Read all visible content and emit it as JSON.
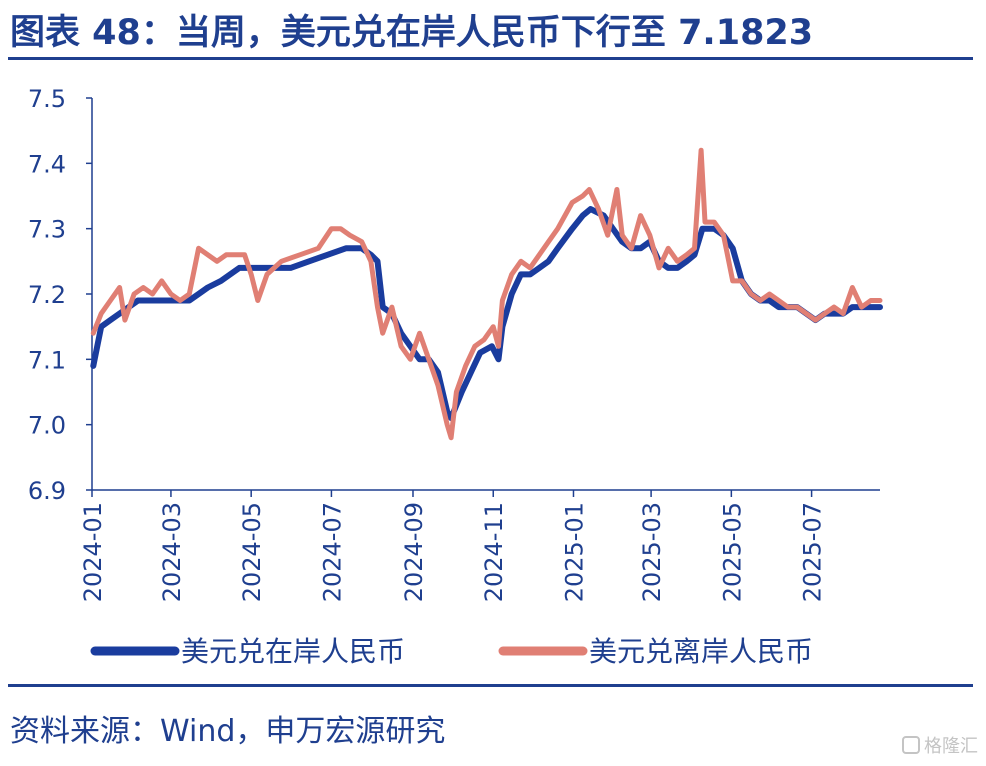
{
  "header": {
    "title": "图表 48：当周，美元兑在岸人民币下行至 7.1823"
  },
  "footer": {
    "source": "资料来源：Wind，申万宏源研究"
  },
  "watermark": {
    "text": "格隆汇"
  },
  "colors": {
    "accent": "#1f3f8f",
    "onshore": "#1a3c9e",
    "offshore": "#e07f74"
  },
  "chart_data": {
    "type": "line",
    "title": "",
    "xlabel": "",
    "ylabel": "",
    "ylim": [
      6.9,
      7.5
    ],
    "yticks": [
      "6.9",
      "7.0",
      "7.1",
      "7.2",
      "7.3",
      "7.4",
      "7.5"
    ],
    "xticks": [
      "2024-01",
      "2024-03",
      "2024-05",
      "2024-07",
      "2024-09",
      "2024-11",
      "2025-01",
      "2025-03",
      "2025-05",
      "2025-07"
    ],
    "xrange": [
      "2024-01-01",
      "2025-08-22"
    ],
    "grid": false,
    "legend": "bottom",
    "series": [
      {
        "name": "美元兑在岸人民币",
        "color": "#1a3c9e",
        "points": [
          [
            "2024-01-02",
            7.09
          ],
          [
            "2024-01-08",
            7.15
          ],
          [
            "2024-01-15",
            7.16
          ],
          [
            "2024-01-22",
            7.17
          ],
          [
            "2024-01-29",
            7.18
          ],
          [
            "2024-02-05",
            7.19
          ],
          [
            "2024-02-19",
            7.19
          ],
          [
            "2024-03-01",
            7.19
          ],
          [
            "2024-03-15",
            7.19
          ],
          [
            "2024-03-22",
            7.2
          ],
          [
            "2024-03-29",
            7.21
          ],
          [
            "2024-04-08",
            7.22
          ],
          [
            "2024-04-15",
            7.23
          ],
          [
            "2024-04-22",
            7.24
          ],
          [
            "2024-05-01",
            7.24
          ],
          [
            "2024-05-15",
            7.24
          ],
          [
            "2024-05-31",
            7.24
          ],
          [
            "2024-06-14",
            7.25
          ],
          [
            "2024-06-28",
            7.26
          ],
          [
            "2024-07-12",
            7.27
          ],
          [
            "2024-07-24",
            7.27
          ],
          [
            "2024-07-31",
            7.26
          ],
          [
            "2024-08-05",
            7.25
          ],
          [
            "2024-08-09",
            7.18
          ],
          [
            "2024-08-16",
            7.17
          ],
          [
            "2024-08-23",
            7.14
          ],
          [
            "2024-08-30",
            7.12
          ],
          [
            "2024-09-06",
            7.1
          ],
          [
            "2024-09-13",
            7.1
          ],
          [
            "2024-09-20",
            7.08
          ],
          [
            "2024-09-27",
            7.02
          ],
          [
            "2024-09-30",
            7.01
          ],
          [
            "2024-10-08",
            7.05
          ],
          [
            "2024-10-15",
            7.08
          ],
          [
            "2024-10-22",
            7.11
          ],
          [
            "2024-10-31",
            7.12
          ],
          [
            "2024-11-05",
            7.1
          ],
          [
            "2024-11-08",
            7.15
          ],
          [
            "2024-11-15",
            7.2
          ],
          [
            "2024-11-22",
            7.23
          ],
          [
            "2024-11-29",
            7.23
          ],
          [
            "2024-12-06",
            7.24
          ],
          [
            "2024-12-13",
            7.25
          ],
          [
            "2024-12-20",
            7.27
          ],
          [
            "2024-12-31",
            7.3
          ],
          [
            "2025-01-08",
            7.32
          ],
          [
            "2025-01-14",
            7.33
          ],
          [
            "2025-01-24",
            7.32
          ],
          [
            "2025-01-31",
            7.3
          ],
          [
            "2025-02-07",
            7.28
          ],
          [
            "2025-02-14",
            7.27
          ],
          [
            "2025-02-21",
            7.27
          ],
          [
            "2025-02-28",
            7.28
          ],
          [
            "2025-03-07",
            7.25
          ],
          [
            "2025-03-14",
            7.24
          ],
          [
            "2025-03-21",
            7.24
          ],
          [
            "2025-03-28",
            7.25
          ],
          [
            "2025-04-03",
            7.26
          ],
          [
            "2025-04-09",
            7.3
          ],
          [
            "2025-04-11",
            7.3
          ],
          [
            "2025-04-18",
            7.3
          ],
          [
            "2025-04-25",
            7.29
          ],
          [
            "2025-05-02",
            7.27
          ],
          [
            "2025-05-09",
            7.22
          ],
          [
            "2025-05-16",
            7.2
          ],
          [
            "2025-05-23",
            7.19
          ],
          [
            "2025-05-30",
            7.19
          ],
          [
            "2025-06-06",
            7.18
          ],
          [
            "2025-06-13",
            7.18
          ],
          [
            "2025-06-20",
            7.18
          ],
          [
            "2025-06-27",
            7.17
          ],
          [
            "2025-07-04",
            7.16
          ],
          [
            "2025-07-11",
            7.17
          ],
          [
            "2025-07-18",
            7.17
          ],
          [
            "2025-07-25",
            7.17
          ],
          [
            "2025-08-01",
            7.18
          ],
          [
            "2025-08-08",
            7.18
          ],
          [
            "2025-08-15",
            7.18
          ],
          [
            "2025-08-22",
            7.18
          ]
        ]
      },
      {
        "name": "美元兑离岸人民币",
        "color": "#e07f74",
        "points": [
          [
            "2024-01-02",
            7.14
          ],
          [
            "2024-01-08",
            7.17
          ],
          [
            "2024-01-15",
            7.19
          ],
          [
            "2024-01-22",
            7.21
          ],
          [
            "2024-01-26",
            7.16
          ],
          [
            "2024-02-02",
            7.2
          ],
          [
            "2024-02-09",
            7.21
          ],
          [
            "2024-02-16",
            7.2
          ],
          [
            "2024-02-23",
            7.22
          ],
          [
            "2024-03-01",
            7.2
          ],
          [
            "2024-03-08",
            7.19
          ],
          [
            "2024-03-15",
            7.2
          ],
          [
            "2024-03-22",
            7.27
          ],
          [
            "2024-03-29",
            7.26
          ],
          [
            "2024-04-05",
            7.25
          ],
          [
            "2024-04-12",
            7.26
          ],
          [
            "2024-04-19",
            7.26
          ],
          [
            "2024-04-26",
            7.26
          ],
          [
            "2024-05-01",
            7.23
          ],
          [
            "2024-05-06",
            7.19
          ],
          [
            "2024-05-13",
            7.23
          ],
          [
            "2024-05-24",
            7.25
          ],
          [
            "2024-06-07",
            7.26
          ],
          [
            "2024-06-21",
            7.27
          ],
          [
            "2024-07-01",
            7.3
          ],
          [
            "2024-07-08",
            7.3
          ],
          [
            "2024-07-15",
            7.29
          ],
          [
            "2024-07-24",
            7.28
          ],
          [
            "2024-07-31",
            7.25
          ],
          [
            "2024-08-05",
            7.18
          ],
          [
            "2024-08-09",
            7.14
          ],
          [
            "2024-08-16",
            7.18
          ],
          [
            "2024-08-23",
            7.12
          ],
          [
            "2024-08-30",
            7.1
          ],
          [
            "2024-09-06",
            7.14
          ],
          [
            "2024-09-13",
            7.1
          ],
          [
            "2024-09-20",
            7.06
          ],
          [
            "2024-09-27",
            7.0
          ],
          [
            "2024-09-30",
            6.98
          ],
          [
            "2024-10-04",
            7.05
          ],
          [
            "2024-10-11",
            7.09
          ],
          [
            "2024-10-18",
            7.12
          ],
          [
            "2024-10-25",
            7.13
          ],
          [
            "2024-11-01",
            7.15
          ],
          [
            "2024-11-05",
            7.12
          ],
          [
            "2024-11-08",
            7.19
          ],
          [
            "2024-11-15",
            7.23
          ],
          [
            "2024-11-22",
            7.25
          ],
          [
            "2024-11-29",
            7.24
          ],
          [
            "2024-12-06",
            7.26
          ],
          [
            "2024-12-13",
            7.28
          ],
          [
            "2024-12-20",
            7.3
          ],
          [
            "2024-12-31",
            7.34
          ],
          [
            "2025-01-08",
            7.35
          ],
          [
            "2025-01-13",
            7.36
          ],
          [
            "2025-01-20",
            7.33
          ],
          [
            "2025-01-27",
            7.29
          ],
          [
            "2025-02-03",
            7.36
          ],
          [
            "2025-02-07",
            7.29
          ],
          [
            "2025-02-14",
            7.27
          ],
          [
            "2025-02-21",
            7.32
          ],
          [
            "2025-02-28",
            7.29
          ],
          [
            "2025-03-07",
            7.24
          ],
          [
            "2025-03-14",
            7.27
          ],
          [
            "2025-03-21",
            7.25
          ],
          [
            "2025-03-28",
            7.26
          ],
          [
            "2025-04-03",
            7.27
          ],
          [
            "2025-04-08",
            7.42
          ],
          [
            "2025-04-11",
            7.31
          ],
          [
            "2025-04-18",
            7.31
          ],
          [
            "2025-04-25",
            7.29
          ],
          [
            "2025-05-02",
            7.22
          ],
          [
            "2025-05-09",
            7.22
          ],
          [
            "2025-05-16",
            7.2
          ],
          [
            "2025-05-23",
            7.19
          ],
          [
            "2025-05-30",
            7.2
          ],
          [
            "2025-06-06",
            7.19
          ],
          [
            "2025-06-13",
            7.18
          ],
          [
            "2025-06-20",
            7.18
          ],
          [
            "2025-06-27",
            7.17
          ],
          [
            "2025-07-04",
            7.16
          ],
          [
            "2025-07-11",
            7.17
          ],
          [
            "2025-07-18",
            7.18
          ],
          [
            "2025-07-25",
            7.17
          ],
          [
            "2025-08-01",
            7.21
          ],
          [
            "2025-08-08",
            7.18
          ],
          [
            "2025-08-15",
            7.19
          ],
          [
            "2025-08-22",
            7.19
          ]
        ]
      }
    ]
  }
}
